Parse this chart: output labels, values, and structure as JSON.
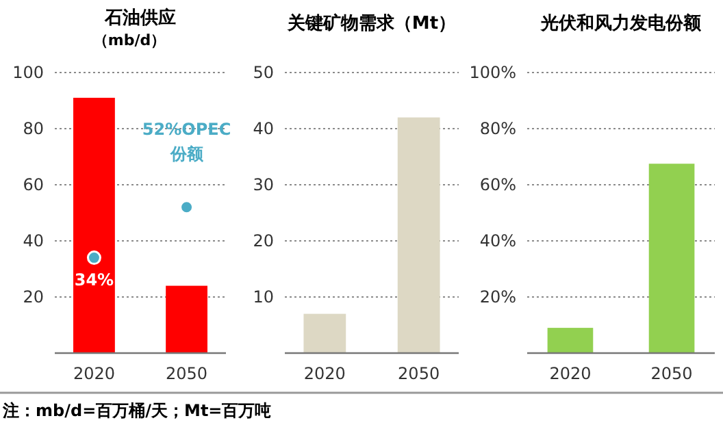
{
  "chart_data": [
    {
      "type": "bar",
      "title": "石油供应",
      "subtitle": "（mb/d）",
      "categories": [
        "2020",
        "2050"
      ],
      "series": [
        {
          "color": "#ff0000",
          "values": [
            91,
            24
          ]
        },
        {
          "type": "scatter",
          "values": [
            34,
            52
          ],
          "color": "#4bacc6",
          "marker": "circle"
        }
      ],
      "ylim": [
        0,
        100
      ],
      "yticks": [
        20,
        40,
        60,
        80,
        100
      ],
      "grid": "y",
      "annotations": [
        {
          "text": "34%",
          "x": "2020",
          "y": 34
        },
        {
          "text": "52%OPEC 份额",
          "x": "2050",
          "y": 52
        },
        "注：mb/d=百万桶/天；Mt=百万吨"
      ]
    },
    {
      "type": "bar",
      "title": "关键矿物需求（Mt）",
      "categories": [
        "2020",
        "2050"
      ],
      "values": [
        7,
        42
      ],
      "color": "#ddd8c4",
      "ylim": [
        0,
        50
      ],
      "yticks": [
        10,
        20,
        30,
        40,
        50
      ],
      "grid": "y"
    },
    {
      "type": "bar",
      "title": "光伏和风力发电份额",
      "categories": [
        "2020",
        "2050"
      ],
      "values": [
        9,
        67.5
      ],
      "color": "#92d050",
      "ylim": [
        0,
        100
      ],
      "yticks": [
        {
          "value": 20,
          "label": "20%"
        },
        {
          "value": 40,
          "label": "40%"
        },
        {
          "value": 60,
          "label": "60%"
        },
        {
          "value": 80,
          "label": "80%"
        },
        {
          "value": 100,
          "label": "100%"
        }
      ],
      "grid": "y"
    }
  ]
}
